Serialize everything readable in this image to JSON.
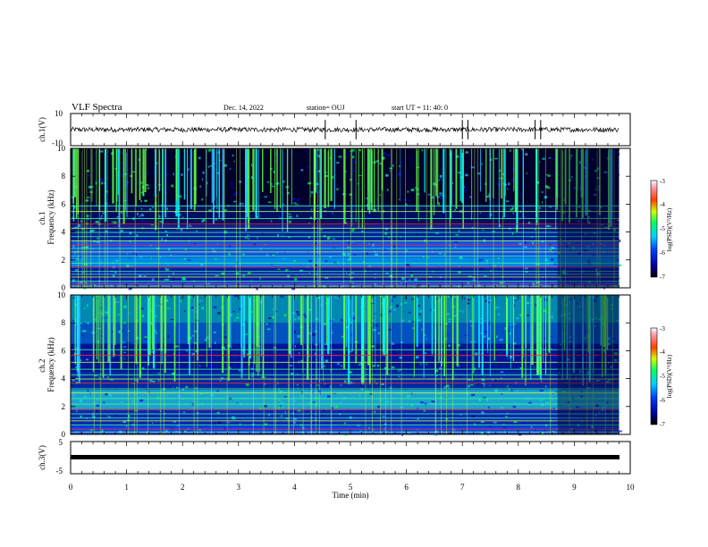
{
  "header": {
    "title": "VLF Spectra",
    "date": "Dec. 14, 2022",
    "station": "station= OUJ",
    "start": "start  UT =   11: 40: 0"
  },
  "chart_data": [
    {
      "type": "line",
      "panel": "ch1-waveform",
      "ylabel": "ch.1(V)",
      "ylim": [
        -10,
        10
      ],
      "yticks": [
        "10",
        "-10"
      ],
      "baseline": 0,
      "amplitude_approx": 1.5,
      "spikes_min": [
        4.55,
        5.1,
        7.0,
        7.1,
        8.3,
        8.4
      ]
    },
    {
      "type": "heatmap",
      "panel": "ch1-spectrogram",
      "ylabel": "ch.1\nFrequency  (kHz)",
      "ylim": [
        0,
        10
      ],
      "yticks": [
        "0",
        "2",
        "4",
        "6",
        "8",
        "10"
      ],
      "xlim": [
        0,
        10
      ],
      "colorbar": {
        "label": "log(PSD)(V²/Hz)",
        "range": [
          -7,
          -3
        ],
        "ticks": [
          "-3",
          "-4",
          "-5",
          "-6",
          "-7"
        ]
      },
      "band_lines_khz": [
        0.15,
        0.3,
        0.5,
        0.8,
        1.0,
        1.2,
        1.5,
        1.8,
        2.3,
        2.6,
        2.85,
        3.1,
        3.4,
        3.7,
        4.0,
        4.3,
        4.6,
        5.0,
        5.5,
        5.9
      ],
      "data_end_min": 9.8
    },
    {
      "type": "heatmap",
      "panel": "ch2-spectrogram",
      "ylabel": "ch.2\nFrequency  (kHz)",
      "ylim": [
        0,
        10
      ],
      "yticks": [
        "0",
        "2",
        "4",
        "6",
        "8",
        "10"
      ],
      "xlim": [
        0,
        10
      ],
      "colorbar": {
        "label": "log(PSD)(V²/Hz)",
        "range": [
          -7,
          -3
        ],
        "ticks": [
          "-3",
          "-4",
          "-5",
          "-6",
          "-7"
        ]
      },
      "band_lines_khz": [
        0.2,
        0.4,
        0.7,
        1.0,
        1.2,
        1.5,
        1.8,
        2.2,
        2.6,
        3.0,
        3.3,
        3.7,
        4.0,
        4.3,
        4.7,
        5.2,
        5.7,
        6.1
      ],
      "data_end_min": 9.8
    },
    {
      "type": "line",
      "panel": "ch3-waveform",
      "ylabel": "ch.3(V)",
      "ylim": [
        -5,
        5
      ],
      "yticks": [
        "5",
        "-5"
      ],
      "value": 0,
      "xlabel": "Time  (min)",
      "xlim": [
        0,
        10
      ],
      "xticks": [
        "0",
        "1",
        "2",
        "3",
        "4",
        "5",
        "6",
        "7",
        "8",
        "9",
        "10"
      ]
    }
  ]
}
